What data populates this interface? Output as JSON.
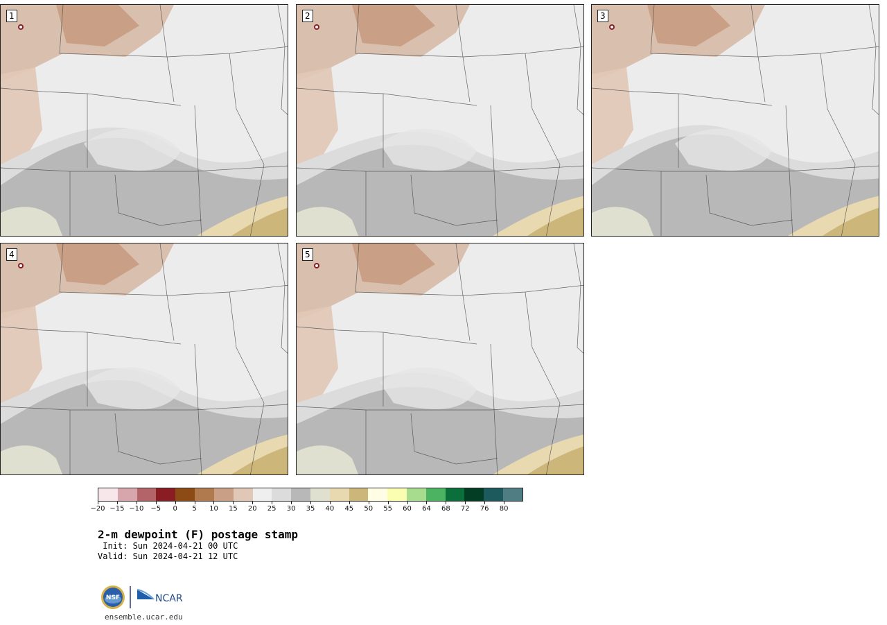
{
  "panels": [
    {
      "label": "1"
    },
    {
      "label": "2"
    },
    {
      "label": "3"
    },
    {
      "label": "4"
    },
    {
      "label": "5"
    }
  ],
  "colorbar": {
    "colors": [
      "#f7e6ea",
      "#d7a6ad",
      "#b26468",
      "#8a1d24",
      "#8c4a14",
      "#b07a4e",
      "#c9a085",
      "#e1c8b6",
      "#efefef",
      "#dcdcdc",
      "#b8b8b8",
      "#e0e0d0",
      "#e8d9b0",
      "#cdb67a",
      "#fffde3",
      "#fbfdb0",
      "#a7dc8f",
      "#4bb362",
      "#0a6f3a",
      "#023d24",
      "#1d5a5d",
      "#4f7d83"
    ],
    "ticks": [
      "−20",
      "−15",
      "−10",
      "−5",
      "0",
      "5",
      "10",
      "15",
      "20",
      "25",
      "30",
      "35",
      "40",
      "45",
      "50",
      "55",
      "60",
      "64",
      "68",
      "72",
      "76",
      "80"
    ]
  },
  "title": "2-m dewpoint (F) postage stamp",
  "init_line": " Init: Sun 2024-04-21 00 UTC",
  "valid_line": "Valid: Sun 2024-04-21 12 UTC",
  "logos": {
    "nsf_text": "NSF",
    "ncar_text": "NCAR"
  },
  "website": "ensemble.ucar.edu"
}
